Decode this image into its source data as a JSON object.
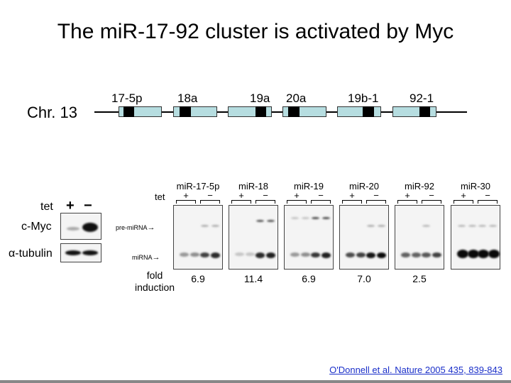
{
  "title": "The miR-17-92 cluster is activated by Myc",
  "chromosome_label": "Chr. 13",
  "genes": [
    "17-5p",
    "18a",
    "19a",
    "20a",
    "19b-1",
    "92-1"
  ],
  "western": {
    "tet_label": "tet",
    "plus": "+",
    "minus": "−",
    "rows": [
      "c-Myc",
      "α-tubulin"
    ]
  },
  "northern": {
    "tet_label": "tet",
    "plus": "+",
    "minus": "−",
    "pre_label": "pre-miRNA",
    "mirna_label": "miRNA",
    "fold_label_1": "fold",
    "fold_label_2": "induction",
    "panels": [
      {
        "name": "miR-17-5p",
        "fold": "6.9"
      },
      {
        "name": "miR-18",
        "fold": "11.4"
      },
      {
        "name": "miR-19",
        "fold": "6.9"
      },
      {
        "name": "miR-20",
        "fold": "7.0"
      },
      {
        "name": "miR-92",
        "fold": "2.5"
      },
      {
        "name": "miR-30",
        "fold": ""
      }
    ]
  },
  "citation": "O'Donnell et al. Nature 2005 435, 839-843",
  "colors": {
    "gene_box": "#b6dde0",
    "link": "#1a2fc9"
  }
}
